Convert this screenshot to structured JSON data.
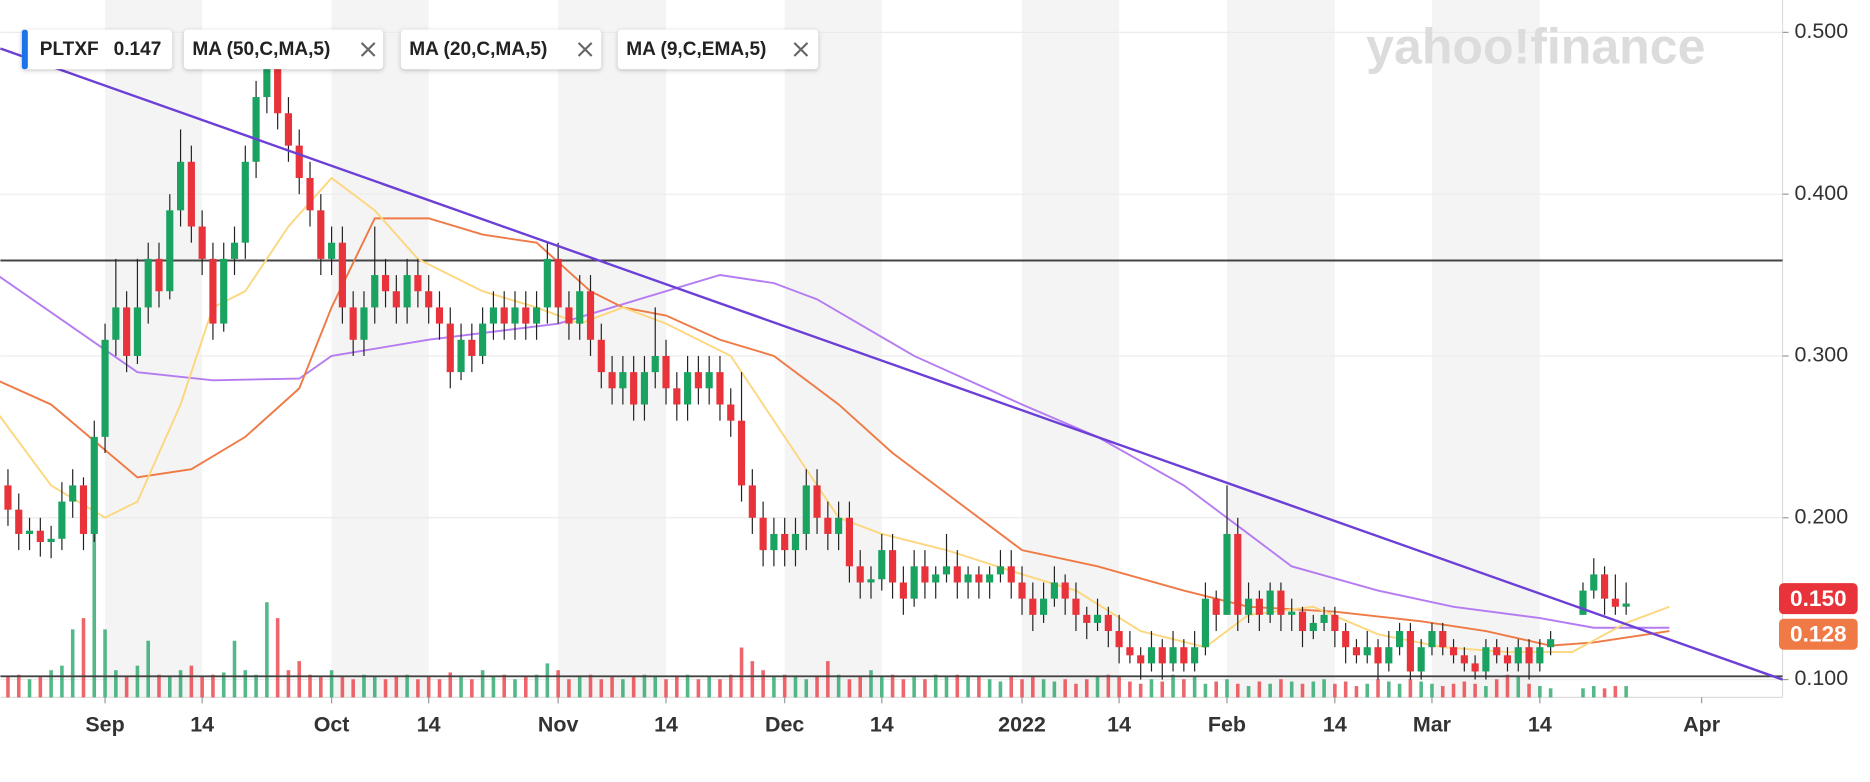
{
  "chart_data": {
    "type": "candlestick",
    "watermark": "yahoo!finance",
    "legend": [
      {
        "label": "PLTXF",
        "value": 0.147
      },
      {
        "label": "MA (50,C,MA,5)"
      },
      {
        "label": "MA (20,C,MA,5)"
      },
      {
        "label": "MA (9,C,EMA,5)"
      }
    ],
    "up_color": "#1aa260",
    "down_color": "#e8333a",
    "xlim": [
      -9.7,
      155.5
    ],
    "xticks": [
      {
        "value": 0,
        "label": "Sep"
      },
      {
        "value": 9,
        "label": "14"
      },
      {
        "value": 21,
        "label": "Oct"
      },
      {
        "value": 30,
        "label": "14"
      },
      {
        "value": 42,
        "label": "Nov"
      },
      {
        "value": 52,
        "label": "14"
      },
      {
        "value": 63,
        "label": "Dec"
      },
      {
        "value": 72,
        "label": "14"
      },
      {
        "value": 85,
        "label": "2022"
      },
      {
        "value": 94,
        "label": "14"
      },
      {
        "value": 104,
        "label": "Feb"
      },
      {
        "value": 114,
        "label": "14"
      },
      {
        "value": 123,
        "label": "Mar"
      },
      {
        "value": 133,
        "label": "14"
      },
      {
        "value": 148,
        "label": "Apr"
      }
    ],
    "ylim": [
      0.089,
      0.52
    ],
    "yticks": [
      {
        "value": 0.1,
        "label": "0.100"
      },
      {
        "value": 0.2,
        "label": "0.200"
      },
      {
        "value": 0.3,
        "label": "0.300"
      },
      {
        "value": 0.4,
        "label": "0.400"
      },
      {
        "value": 0.5,
        "label": "0.500"
      }
    ],
    "grid": true,
    "x": [
      -9,
      -8,
      -7,
      -6,
      -5,
      -4,
      -3,
      -2,
      -1,
      0,
      1,
      2,
      3,
      4,
      5,
      6,
      7,
      8,
      9,
      10,
      11,
      12,
      13,
      14,
      15,
      16,
      17,
      18,
      19,
      20,
      21,
      22,
      23,
      24,
      25,
      26,
      27,
      28,
      29,
      30,
      31,
      32,
      33,
      34,
      35,
      36,
      37,
      38,
      39,
      40,
      41,
      42,
      43,
      44,
      45,
      46,
      47,
      48,
      49,
      50,
      51,
      52,
      53,
      54,
      55,
      56,
      57,
      58,
      59,
      60,
      61,
      62,
      63,
      64,
      65,
      66,
      67,
      68,
      69,
      70,
      71,
      72,
      73,
      74,
      75,
      76,
      77,
      78,
      79,
      80,
      81,
      82,
      83,
      84,
      85,
      86,
      87,
      88,
      89,
      90,
      91,
      92,
      93,
      94,
      95,
      96,
      97,
      98,
      99,
      100,
      101,
      102,
      103,
      104,
      105,
      106,
      107,
      108,
      109,
      110,
      111,
      112,
      113,
      114,
      115,
      116,
      117,
      118,
      119,
      120,
      121,
      122,
      123,
      124,
      125,
      126,
      127,
      128,
      129,
      130,
      131,
      132,
      133,
      134,
      137,
      138,
      139,
      140,
      141
    ],
    "ohlc": [
      [
        0.22,
        0.23,
        0.195,
        0.205
      ],
      [
        0.205,
        0.215,
        0.18,
        0.19
      ],
      [
        0.19,
        0.2,
        0.18,
        0.192
      ],
      [
        0.192,
        0.2,
        0.176,
        0.185
      ],
      [
        0.185,
        0.195,
        0.175,
        0.187
      ],
      [
        0.187,
        0.222,
        0.18,
        0.21
      ],
      [
        0.21,
        0.23,
        0.2,
        0.22
      ],
      [
        0.22,
        0.225,
        0.18,
        0.19
      ],
      [
        0.19,
        0.26,
        0.185,
        0.25
      ],
      [
        0.25,
        0.32,
        0.24,
        0.31
      ],
      [
        0.31,
        0.36,
        0.3,
        0.33
      ],
      [
        0.33,
        0.34,
        0.29,
        0.3
      ],
      [
        0.3,
        0.36,
        0.295,
        0.33
      ],
      [
        0.33,
        0.37,
        0.32,
        0.36
      ],
      [
        0.36,
        0.37,
        0.33,
        0.34
      ],
      [
        0.34,
        0.4,
        0.335,
        0.39
      ],
      [
        0.39,
        0.44,
        0.38,
        0.42
      ],
      [
        0.42,
        0.43,
        0.37,
        0.38
      ],
      [
        0.38,
        0.39,
        0.35,
        0.36
      ],
      [
        0.36,
        0.37,
        0.31,
        0.32
      ],
      [
        0.32,
        0.37,
        0.315,
        0.36
      ],
      [
        0.36,
        0.38,
        0.35,
        0.37
      ],
      [
        0.37,
        0.43,
        0.36,
        0.42
      ],
      [
        0.42,
        0.47,
        0.41,
        0.46
      ],
      [
        0.46,
        0.49,
        0.45,
        0.48
      ],
      [
        0.48,
        0.48,
        0.44,
        0.45
      ],
      [
        0.45,
        0.46,
        0.42,
        0.43
      ],
      [
        0.43,
        0.44,
        0.4,
        0.41
      ],
      [
        0.41,
        0.42,
        0.38,
        0.39
      ],
      [
        0.39,
        0.4,
        0.35,
        0.36
      ],
      [
        0.36,
        0.38,
        0.35,
        0.37
      ],
      [
        0.37,
        0.38,
        0.32,
        0.33
      ],
      [
        0.33,
        0.34,
        0.3,
        0.31
      ],
      [
        0.31,
        0.34,
        0.3,
        0.33
      ],
      [
        0.33,
        0.38,
        0.32,
        0.35
      ],
      [
        0.35,
        0.36,
        0.33,
        0.34
      ],
      [
        0.34,
        0.35,
        0.32,
        0.33
      ],
      [
        0.33,
        0.36,
        0.32,
        0.35
      ],
      [
        0.35,
        0.36,
        0.33,
        0.34
      ],
      [
        0.34,
        0.35,
        0.32,
        0.33
      ],
      [
        0.33,
        0.34,
        0.31,
        0.32
      ],
      [
        0.32,
        0.33,
        0.28,
        0.29
      ],
      [
        0.29,
        0.32,
        0.285,
        0.31
      ],
      [
        0.31,
        0.32,
        0.29,
        0.3
      ],
      [
        0.3,
        0.33,
        0.295,
        0.32
      ],
      [
        0.32,
        0.34,
        0.31,
        0.33
      ],
      [
        0.33,
        0.34,
        0.31,
        0.32
      ],
      [
        0.32,
        0.34,
        0.31,
        0.33
      ],
      [
        0.33,
        0.34,
        0.31,
        0.32
      ],
      [
        0.32,
        0.34,
        0.31,
        0.33
      ],
      [
        0.33,
        0.37,
        0.32,
        0.36
      ],
      [
        0.36,
        0.37,
        0.32,
        0.33
      ],
      [
        0.33,
        0.34,
        0.31,
        0.32
      ],
      [
        0.32,
        0.35,
        0.31,
        0.34
      ],
      [
        0.34,
        0.35,
        0.3,
        0.31
      ],
      [
        0.31,
        0.32,
        0.28,
        0.29
      ],
      [
        0.29,
        0.3,
        0.27,
        0.28
      ],
      [
        0.28,
        0.3,
        0.27,
        0.29
      ],
      [
        0.29,
        0.3,
        0.26,
        0.27
      ],
      [
        0.27,
        0.3,
        0.26,
        0.29
      ],
      [
        0.29,
        0.33,
        0.28,
        0.3
      ],
      [
        0.3,
        0.31,
        0.27,
        0.28
      ],
      [
        0.28,
        0.29,
        0.26,
        0.27
      ],
      [
        0.27,
        0.3,
        0.26,
        0.29
      ],
      [
        0.29,
        0.3,
        0.27,
        0.28
      ],
      [
        0.28,
        0.3,
        0.27,
        0.29
      ],
      [
        0.29,
        0.3,
        0.26,
        0.27
      ],
      [
        0.27,
        0.28,
        0.25,
        0.26
      ],
      [
        0.26,
        0.29,
        0.21,
        0.22
      ],
      [
        0.22,
        0.23,
        0.19,
        0.2
      ],
      [
        0.2,
        0.21,
        0.17,
        0.18
      ],
      [
        0.18,
        0.2,
        0.17,
        0.19
      ],
      [
        0.19,
        0.2,
        0.17,
        0.18
      ],
      [
        0.18,
        0.2,
        0.17,
        0.19
      ],
      [
        0.19,
        0.23,
        0.18,
        0.22
      ],
      [
        0.22,
        0.23,
        0.19,
        0.2
      ],
      [
        0.2,
        0.21,
        0.18,
        0.19
      ],
      [
        0.19,
        0.21,
        0.18,
        0.2
      ],
      [
        0.2,
        0.21,
        0.16,
        0.17
      ],
      [
        0.17,
        0.18,
        0.15,
        0.16
      ],
      [
        0.16,
        0.17,
        0.15,
        0.162
      ],
      [
        0.162,
        0.19,
        0.155,
        0.18
      ],
      [
        0.18,
        0.19,
        0.15,
        0.16
      ],
      [
        0.16,
        0.17,
        0.14,
        0.15
      ],
      [
        0.15,
        0.18,
        0.145,
        0.17
      ],
      [
        0.17,
        0.18,
        0.15,
        0.16
      ],
      [
        0.16,
        0.17,
        0.15,
        0.165
      ],
      [
        0.165,
        0.19,
        0.16,
        0.17
      ],
      [
        0.17,
        0.18,
        0.15,
        0.16
      ],
      [
        0.16,
        0.17,
        0.15,
        0.165
      ],
      [
        0.165,
        0.17,
        0.15,
        0.16
      ],
      [
        0.16,
        0.17,
        0.15,
        0.165
      ],
      [
        0.165,
        0.18,
        0.16,
        0.17
      ],
      [
        0.17,
        0.18,
        0.15,
        0.16
      ],
      [
        0.16,
        0.17,
        0.14,
        0.15
      ],
      [
        0.15,
        0.16,
        0.13,
        0.14
      ],
      [
        0.14,
        0.16,
        0.135,
        0.15
      ],
      [
        0.15,
        0.17,
        0.145,
        0.16
      ],
      [
        0.16,
        0.165,
        0.14,
        0.15
      ],
      [
        0.15,
        0.16,
        0.13,
        0.14
      ],
      [
        0.14,
        0.145,
        0.125,
        0.135
      ],
      [
        0.135,
        0.15,
        0.13,
        0.14
      ],
      [
        0.14,
        0.145,
        0.12,
        0.13
      ],
      [
        0.13,
        0.14,
        0.11,
        0.12
      ],
      [
        0.12,
        0.13,
        0.11,
        0.115
      ],
      [
        0.115,
        0.12,
        0.1,
        0.11
      ],
      [
        0.11,
        0.13,
        0.105,
        0.12
      ],
      [
        0.12,
        0.125,
        0.1,
        0.11
      ],
      [
        0.11,
        0.13,
        0.105,
        0.12
      ],
      [
        0.12,
        0.125,
        0.105,
        0.11
      ],
      [
        0.11,
        0.13,
        0.105,
        0.12
      ],
      [
        0.12,
        0.16,
        0.115,
        0.15
      ],
      [
        0.15,
        0.155,
        0.13,
        0.14
      ],
      [
        0.14,
        0.22,
        0.14,
        0.19
      ],
      [
        0.19,
        0.2,
        0.13,
        0.14
      ],
      [
        0.14,
        0.16,
        0.135,
        0.15
      ],
      [
        0.15,
        0.155,
        0.13,
        0.14
      ],
      [
        0.14,
        0.16,
        0.135,
        0.155
      ],
      [
        0.155,
        0.16,
        0.13,
        0.14
      ],
      [
        0.14,
        0.15,
        0.13,
        0.142
      ],
      [
        0.142,
        0.145,
        0.12,
        0.13
      ],
      [
        0.13,
        0.14,
        0.125,
        0.135
      ],
      [
        0.135,
        0.145,
        0.13,
        0.14
      ],
      [
        0.14,
        0.145,
        0.12,
        0.13
      ],
      [
        0.13,
        0.135,
        0.11,
        0.12
      ],
      [
        0.12,
        0.125,
        0.11,
        0.115
      ],
      [
        0.115,
        0.13,
        0.11,
        0.12
      ],
      [
        0.12,
        0.125,
        0.1,
        0.11
      ],
      [
        0.11,
        0.13,
        0.105,
        0.12
      ],
      [
        0.12,
        0.135,
        0.115,
        0.13
      ],
      [
        0.13,
        0.135,
        0.1,
        0.105
      ],
      [
        0.105,
        0.125,
        0.1,
        0.12
      ],
      [
        0.12,
        0.135,
        0.115,
        0.13
      ],
      [
        0.13,
        0.135,
        0.115,
        0.12
      ],
      [
        0.12,
        0.125,
        0.11,
        0.115
      ],
      [
        0.115,
        0.12,
        0.105,
        0.11
      ],
      [
        0.11,
        0.115,
        0.1,
        0.105
      ],
      [
        0.105,
        0.125,
        0.1,
        0.12
      ],
      [
        0.12,
        0.125,
        0.11,
        0.115
      ],
      [
        0.115,
        0.12,
        0.105,
        0.11
      ],
      [
        0.11,
        0.125,
        0.105,
        0.12
      ],
      [
        0.12,
        0.125,
        0.1,
        0.11
      ],
      [
        0.11,
        0.125,
        0.105,
        0.12
      ],
      [
        0.12,
        0.13,
        0.115,
        0.125
      ],
      [
        0.14,
        0.16,
        0.14,
        0.155
      ],
      [
        0.155,
        0.175,
        0.15,
        0.165
      ],
      [
        0.165,
        0.17,
        0.14,
        0.15
      ],
      [
        0.15,
        0.165,
        0.14,
        0.145
      ],
      [
        0.145,
        0.16,
        0.14,
        0.147
      ]
    ],
    "volume_ylim": [
      0,
      100
    ],
    "volume": [
      9,
      10,
      8,
      9,
      12,
      14,
      30,
      35,
      95,
      30,
      12,
      9,
      14,
      25,
      10,
      9,
      12,
      14,
      9,
      10,
      11,
      25,
      12,
      10,
      42,
      35,
      12,
      16,
      10,
      9,
      12,
      9,
      8,
      10,
      9,
      8,
      9,
      10,
      8,
      9,
      8,
      11,
      9,
      8,
      12,
      9,
      10,
      8,
      9,
      10,
      15,
      12,
      8,
      9,
      10,
      8,
      9,
      8,
      9,
      10,
      9,
      8,
      9,
      10,
      8,
      9,
      8,
      10,
      22,
      16,
      12,
      9,
      10,
      9,
      8,
      9,
      16,
      10,
      8,
      9,
      12,
      9,
      10,
      8,
      9,
      8,
      10,
      9,
      10,
      9,
      9,
      8,
      7,
      9,
      8,
      9,
      8,
      7,
      8,
      6,
      8,
      9,
      10,
      9,
      7,
      6,
      8,
      7,
      10,
      8,
      9,
      6,
      7,
      8,
      6,
      5,
      7,
      6,
      8,
      7,
      6,
      7,
      8,
      6,
      7,
      5,
      6,
      8,
      7,
      6,
      8,
      7,
      6,
      5,
      6,
      7,
      6,
      5,
      8,
      10,
      9,
      6,
      5,
      4,
      4,
      5,
      4,
      5,
      5
    ],
    "series": [
      {
        "name": "MA (50,C,MA,5)",
        "color": "#b57cf2",
        "x": [
          -10,
          3,
          10,
          18,
          21,
          30,
          42,
          47,
          57,
          62,
          66,
          75,
          85,
          92,
          100,
          106,
          110,
          118,
          125,
          133,
          138,
          145
        ],
        "values": [
          0.35,
          0.29,
          0.285,
          0.286,
          0.3,
          0.31,
          0.32,
          0.33,
          0.35,
          0.345,
          0.335,
          0.3,
          0.27,
          0.25,
          0.22,
          0.19,
          0.17,
          0.155,
          0.145,
          0.138,
          0.132,
          0.132
        ]
      },
      {
        "name": "MA (20,C,MA,5)",
        "color": "#ef7a45",
        "x": [
          -10,
          -5,
          3,
          8,
          13,
          18,
          21,
          25,
          30,
          35,
          40,
          45,
          48,
          52,
          57,
          62,
          68,
          73,
          78,
          85,
          92,
          100,
          106,
          114,
          122,
          128,
          134,
          138,
          145
        ],
        "values": [
          0.285,
          0.27,
          0.225,
          0.23,
          0.25,
          0.28,
          0.33,
          0.385,
          0.385,
          0.375,
          0.37,
          0.34,
          0.33,
          0.325,
          0.31,
          0.3,
          0.27,
          0.24,
          0.215,
          0.18,
          0.17,
          0.155,
          0.145,
          0.142,
          0.136,
          0.13,
          0.121,
          0.123,
          0.13
        ]
      },
      {
        "name": "MA (9,C,EMA,5)",
        "color": "#fcd77e",
        "x": [
          -10,
          -5,
          0,
          3,
          7,
          10,
          13,
          17,
          21,
          25,
          29,
          35,
          40,
          44,
          48,
          52,
          58,
          63,
          68,
          72,
          78,
          85,
          90,
          96,
          102,
          106,
          112,
          118,
          124,
          130,
          136,
          141,
          145
        ],
        "values": [
          0.265,
          0.22,
          0.2,
          0.21,
          0.27,
          0.33,
          0.34,
          0.38,
          0.41,
          0.39,
          0.36,
          0.34,
          0.33,
          0.32,
          0.33,
          0.32,
          0.3,
          0.25,
          0.2,
          0.19,
          0.18,
          0.165,
          0.155,
          0.13,
          0.12,
          0.14,
          0.145,
          0.128,
          0.12,
          0.117,
          0.117,
          0.135,
          0.145
        ]
      }
    ],
    "trendline": {
      "color": "#6c3fd6",
      "x": [
        -9.7,
        155.5
      ],
      "values": [
        0.49,
        0.1
      ]
    },
    "hlines": [
      0.359,
      0.102
    ],
    "price_tags": [
      {
        "value": 0.15,
        "label": "0.150",
        "color": "#e8333a"
      },
      {
        "value": 0.128,
        "label": "0.128",
        "color": "#ef7a45"
      }
    ]
  }
}
